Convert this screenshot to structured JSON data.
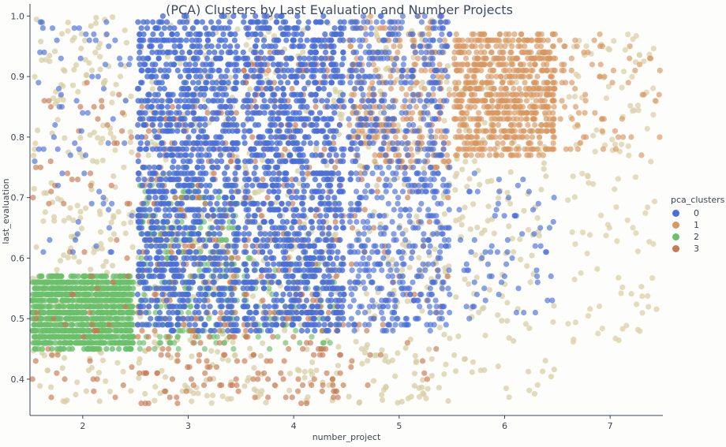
{
  "chart_data": {
    "type": "scatter",
    "title": "(PCA) Clusters by Last Evaluation and Number Projects",
    "xlabel": "number_project",
    "ylabel": "last_evaluation",
    "xlim": [
      1.5,
      7.5
    ],
    "ylim": [
      0.34,
      1.02
    ],
    "x_ticks": [
      2,
      3,
      4,
      5,
      6,
      7
    ],
    "y_ticks": [
      0.4,
      0.5,
      0.6,
      0.7,
      0.8,
      0.9,
      1.0
    ],
    "y_tick_labels": [
      "0.4",
      "0.5",
      "0.6",
      "0.7",
      "0.8",
      "0.9",
      "1.0"
    ],
    "legend": {
      "title": "pca_clusters",
      "position": "right",
      "entries": [
        "0",
        "1",
        "2",
        "3"
      ]
    },
    "grid": false,
    "jitter": "x jitter ±0.5 around each integer project count",
    "colors": {
      "0": "#4a6fd8",
      "1": "#d9975f",
      "2": "#6bbf6b",
      "3": "#c87a52",
      "halo": "#ddd3ad",
      "lowdensity": "#d7cfa6"
    },
    "series": [
      {
        "name": "0",
        "clusters": [
          {
            "x": 3,
            "y_range": [
              0.48,
              1.0
            ],
            "density": "very high"
          },
          {
            "x": 4,
            "y_range": [
              0.48,
              1.0
            ],
            "density": "very high"
          },
          {
            "x": 5,
            "y_range": [
              0.48,
              1.0
            ],
            "density": "high"
          },
          {
            "x": 2,
            "y_range": [
              0.6,
              1.0
            ],
            "density": "low"
          },
          {
            "x": 6,
            "y_range": [
              0.5,
              0.75
            ],
            "density": "low"
          }
        ]
      },
      {
        "name": "1",
        "clusters": [
          {
            "x": 5,
            "y_range": [
              0.75,
              1.0
            ],
            "density": "medium"
          },
          {
            "x": 6,
            "y_range": [
              0.77,
              0.97
            ],
            "density": "high"
          },
          {
            "x": 7,
            "y_range": [
              0.77,
              0.97
            ],
            "density": "low"
          }
        ]
      },
      {
        "name": "2",
        "clusters": [
          {
            "x": 2,
            "y_range": [
              0.45,
              0.57
            ],
            "density": "very high"
          },
          {
            "x": 3,
            "y_range": [
              0.45,
              0.72
            ],
            "density": "medium"
          },
          {
            "x": 4,
            "y_range": [
              0.45,
              0.6
            ],
            "density": "low"
          }
        ]
      },
      {
        "name": "3",
        "clusters": [
          {
            "x": 2,
            "y_range": [
              0.36,
              0.9
            ],
            "density": "low"
          },
          {
            "x": 3,
            "y_range": [
              0.36,
              0.85
            ],
            "density": "medium"
          },
          {
            "x": 4,
            "y_range": [
              0.36,
              0.95
            ],
            "density": "medium"
          },
          {
            "x": 5,
            "y_range": [
              0.36,
              0.9
            ],
            "density": "low"
          }
        ]
      }
    ]
  }
}
